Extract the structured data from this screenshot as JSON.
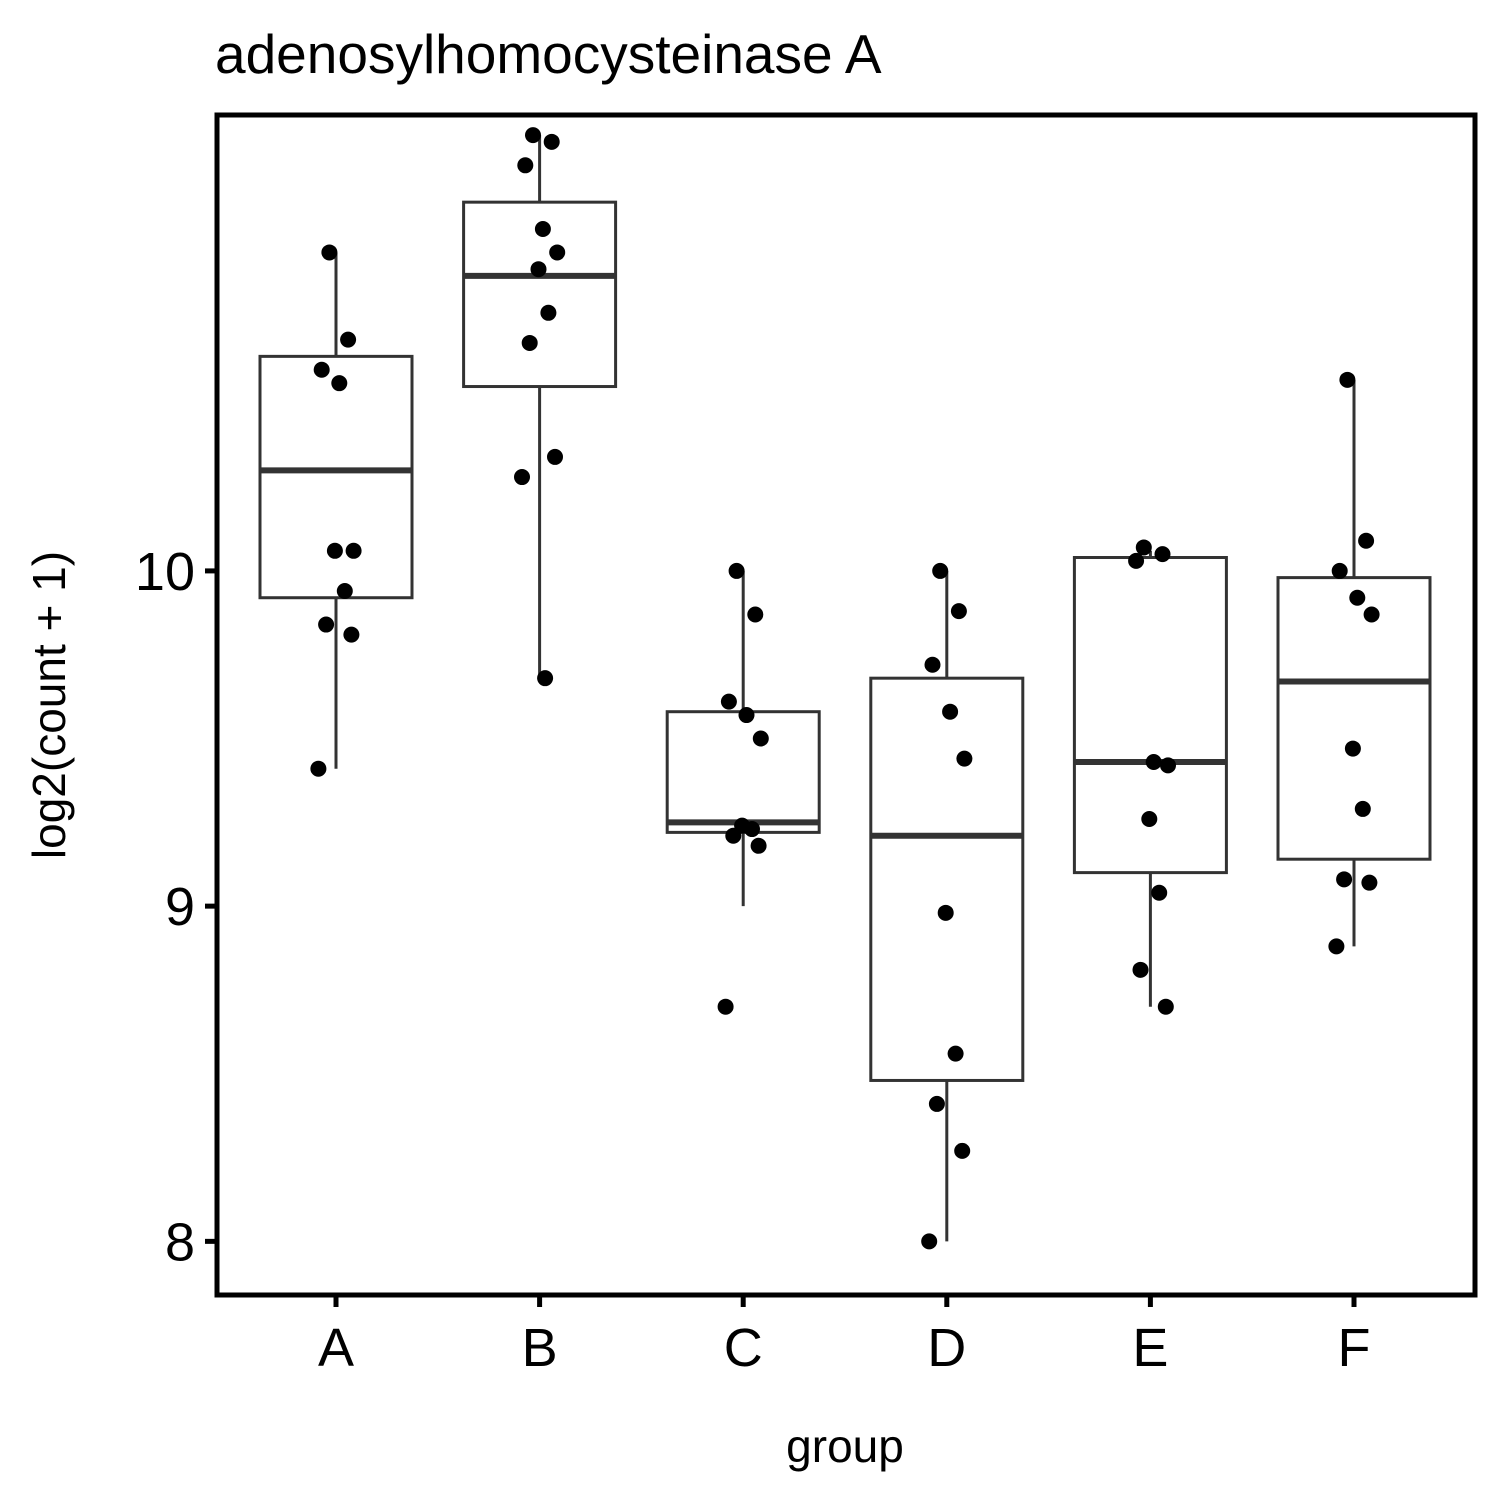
{
  "chart_data": {
    "type": "box",
    "title": "adenosylhomocysteinase A",
    "xlabel": "group",
    "ylabel": "log2(count + 1)",
    "categories": [
      "A",
      "B",
      "C",
      "D",
      "E",
      "F"
    ],
    "y_ticks": [
      8,
      9,
      10
    ],
    "ylim": [
      7.84,
      11.36
    ],
    "grid": false,
    "legend": "none",
    "boxes": [
      {
        "group": "A",
        "whisker_low": 9.41,
        "q1": 9.92,
        "median": 10.3,
        "q3": 10.64,
        "whisker_high": 10.95
      },
      {
        "group": "B",
        "whisker_low": 9.68,
        "q1": 10.55,
        "median": 10.88,
        "q3": 11.1,
        "whisker_high": 11.3
      },
      {
        "group": "C",
        "whisker_low": 9.0,
        "q1": 9.22,
        "median": 9.25,
        "q3": 9.58,
        "whisker_high": 10.0
      },
      {
        "group": "D",
        "whisker_low": 8.0,
        "q1": 8.48,
        "median": 9.21,
        "q3": 9.68,
        "whisker_high": 10.0
      },
      {
        "group": "E",
        "whisker_low": 8.7,
        "q1": 9.1,
        "median": 9.43,
        "q3": 10.04,
        "whisker_high": 10.06
      },
      {
        "group": "F",
        "whisker_low": 8.88,
        "q1": 9.14,
        "median": 9.67,
        "q3": 9.98,
        "whisker_high": 10.57
      }
    ],
    "points": {
      "A": [
        10.95,
        10.69,
        10.6,
        10.56,
        10.06,
        10.06,
        9.94,
        9.84,
        9.81,
        9.41
      ],
      "B": [
        11.3,
        11.28,
        11.21,
        11.02,
        10.95,
        10.9,
        10.77,
        10.68,
        10.34,
        10.28,
        9.68
      ],
      "C": [
        10.0,
        9.87,
        9.61,
        9.57,
        9.5,
        9.24,
        9.23,
        9.21,
        9.18,
        8.7
      ],
      "D": [
        10.0,
        9.88,
        9.72,
        9.58,
        9.44,
        8.98,
        8.56,
        8.41,
        8.27,
        8.0
      ],
      "E": [
        10.07,
        10.05,
        10.03,
        9.43,
        9.42,
        9.26,
        9.04,
        8.81,
        8.7
      ],
      "F": [
        10.57,
        10.09,
        10.0,
        9.92,
        9.87,
        9.47,
        9.29,
        9.08,
        9.07,
        8.88
      ]
    },
    "colors": {
      "box_stroke": "#333333",
      "point": "#000000",
      "axis": "#000000"
    }
  }
}
